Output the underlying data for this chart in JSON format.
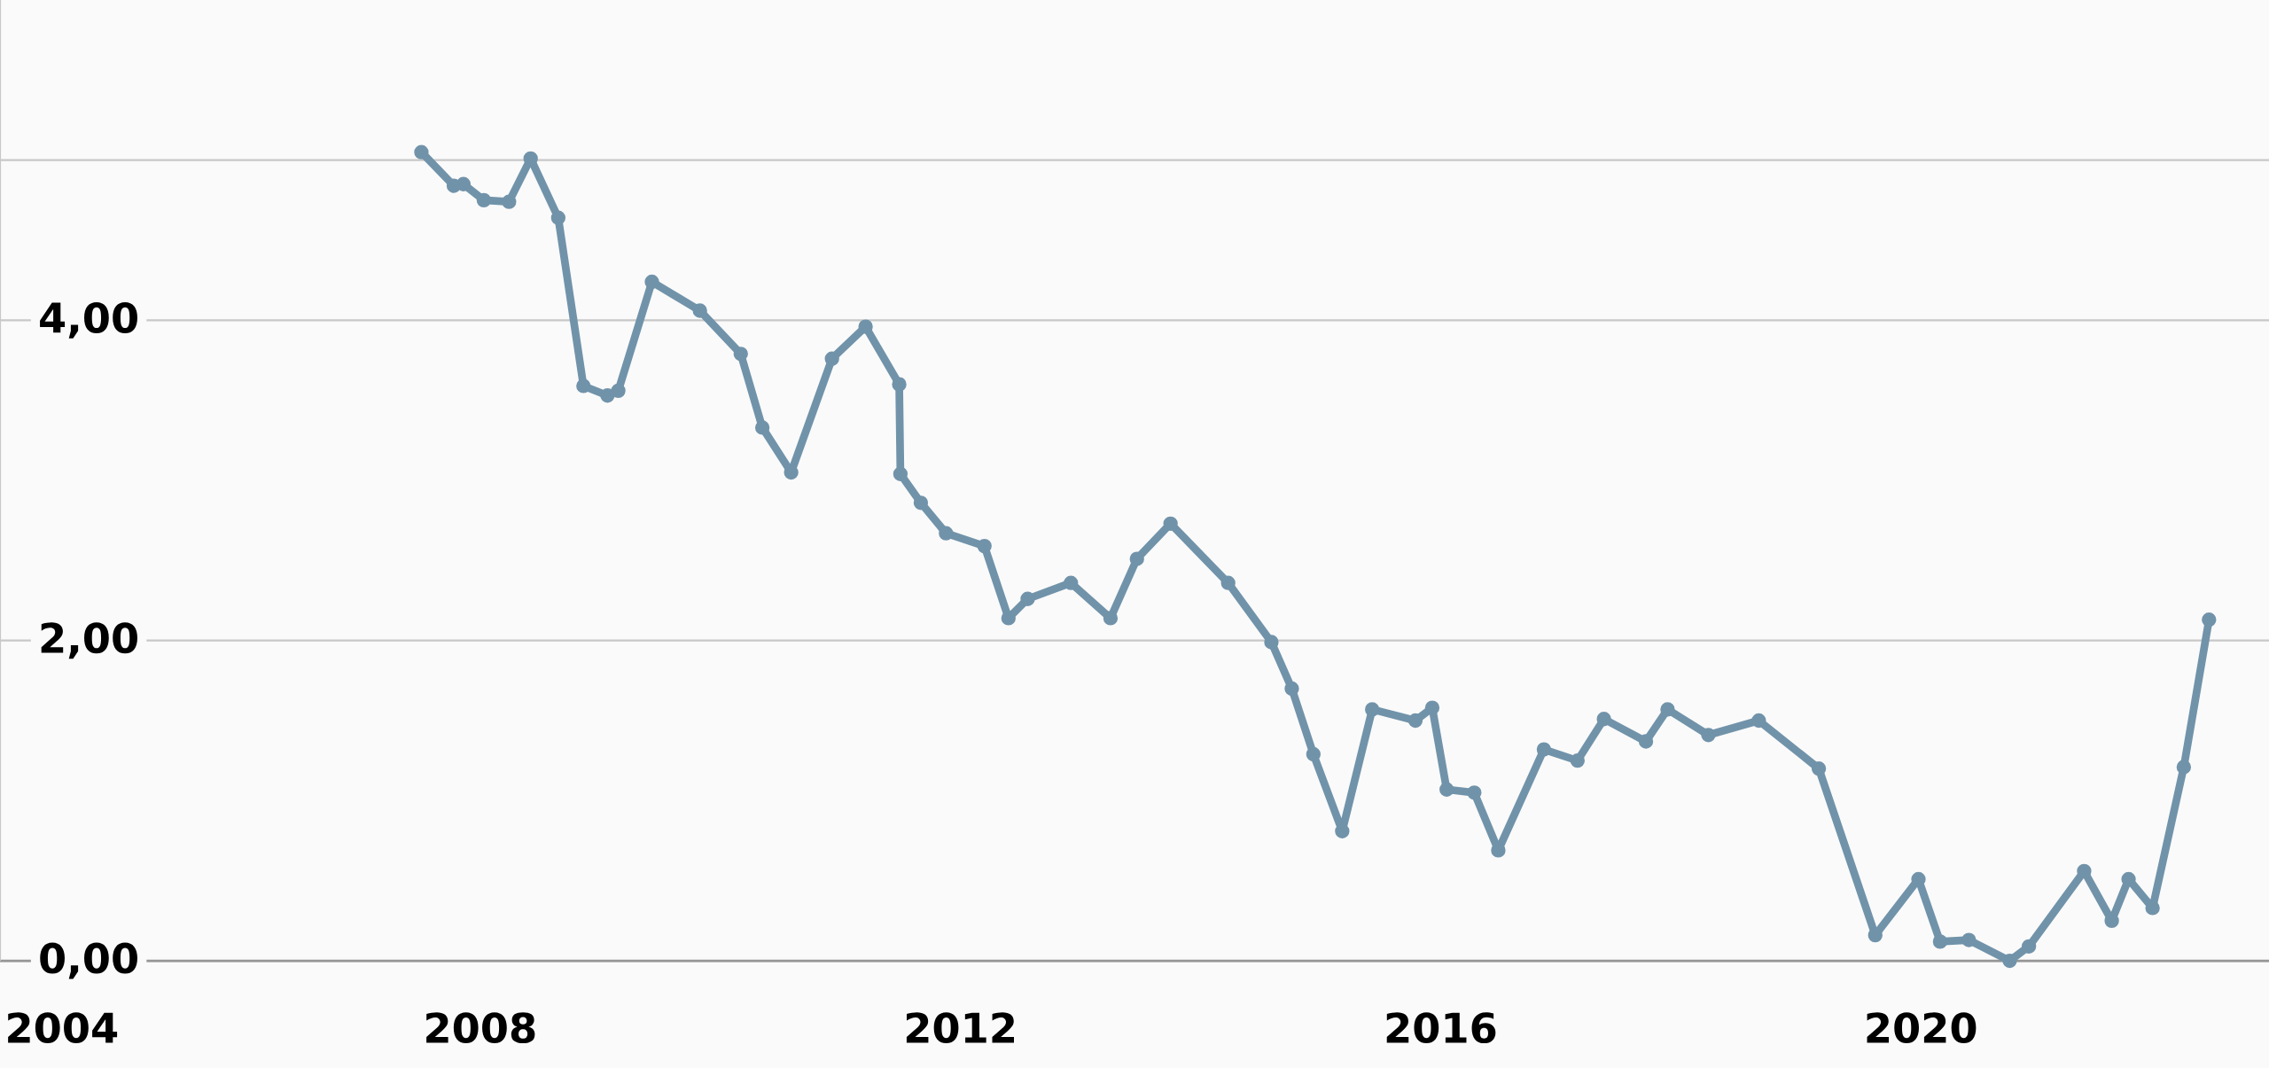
{
  "chart_data": {
    "type": "line",
    "x": [
      2007.51,
      2007.78,
      2007.86,
      2008.03,
      2008.24,
      2008.42,
      2008.65,
      2008.86,
      2009.06,
      2009.15,
      2009.43,
      2009.83,
      2010.17,
      2010.35,
      2010.59,
      2010.93,
      2011.21,
      2011.49,
      2011.5,
      2011.67,
      2011.88,
      2012.2,
      2012.4,
      2012.56,
      2012.92,
      2013.25,
      2013.47,
      2013.75,
      2014.23,
      2014.59,
      2014.76,
      2014.94,
      2015.18,
      2015.43,
      2015.79,
      2015.93,
      2016.05,
      2016.28,
      2016.48,
      2016.86,
      2017.14,
      2017.36,
      2017.71,
      2017.89,
      2018.23,
      2018.65,
      2019.15,
      2019.62,
      2019.98,
      2020.16,
      2020.4,
      2020.74,
      2020.9,
      2021.36,
      2021.59,
      2021.73,
      2021.93,
      2022.19,
      2022.4
    ],
    "series": [
      {
        "color": "#7193aa",
        "values": [
          5.05,
          4.84,
          4.85,
          4.75,
          4.74,
          5.01,
          4.64,
          3.59,
          3.53,
          3.56,
          4.24,
          4.06,
          3.79,
          3.33,
          3.05,
          3.76,
          3.96,
          3.6,
          3.04,
          2.86,
          2.67,
          2.59,
          2.14,
          2.26,
          2.36,
          2.14,
          2.51,
          2.73,
          2.36,
          1.99,
          1.7,
          1.29,
          0.81,
          1.57,
          1.5,
          1.58,
          1.07,
          1.05,
          0.69,
          1.32,
          1.25,
          1.51,
          1.37,
          1.57,
          1.41,
          1.5,
          1.2,
          0.16,
          0.51,
          0.12,
          0.13,
          0.0,
          0.09,
          0.56,
          0.25,
          0.51,
          0.33,
          1.21,
          2.13
        ]
      }
    ],
    "xlim": [
      2004,
      2022.9
    ],
    "ylim": [
      0,
      6
    ],
    "xticks": [
      2004,
      2008,
      2012,
      2016,
      2020
    ],
    "yticks": [
      {
        "value": 0,
        "label": "0,00"
      },
      {
        "value": 2,
        "label": "2,00"
      },
      {
        "value": 4,
        "label": "4,00"
      },
      {
        "value": 5,
        "label": null
      }
    ],
    "grid": "y",
    "marker": "circle",
    "line_style": "solid"
  }
}
